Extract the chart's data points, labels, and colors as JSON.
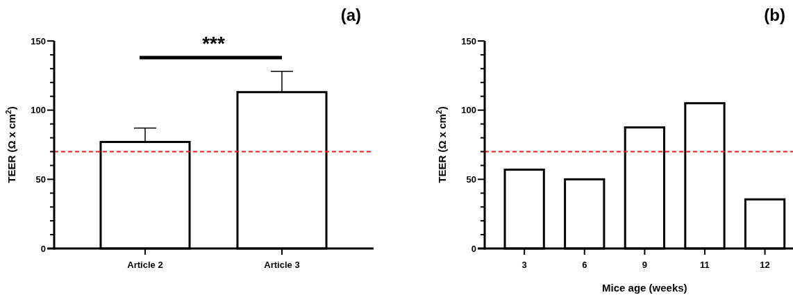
{
  "chart_data": [
    {
      "type": "bar",
      "title": "(a)",
      "ylabel": "TEER (Ω x cm$^{2}$)",
      "categories": [
        "Article 2",
        "Article 3"
      ],
      "values": [
        77,
        113
      ],
      "errors": [
        [
          77,
          87
        ],
        [
          113,
          128
        ]
      ],
      "color": "#ffffff",
      "ylim": [
        0,
        150
      ],
      "yticks": [
        0,
        {
          "value": 10,
          "label": null
        },
        {
          "value": 20,
          "label": null
        },
        {
          "value": 30,
          "label": null
        },
        {
          "value": 40,
          "label": null
        },
        50,
        {
          "value": 60,
          "label": null
        },
        {
          "value": 70,
          "label": null
        },
        {
          "value": 80,
          "label": null
        },
        {
          "value": 90,
          "label": null
        },
        100,
        {
          "value": 110,
          "label": null
        },
        {
          "value": 120,
          "label": null
        },
        {
          "value": 130,
          "label": null
        },
        {
          "value": 140,
          "label": null
        },
        150
      ],
      "ref_lines": [
        {
          "axis": "y",
          "value": 70,
          "color": "#ee1c1c",
          "line_style": "dashed"
        }
      ],
      "annotations": [
        "***"
      ],
      "grid": false
    },
    {
      "type": "bar",
      "title": "(b)",
      "ylabel": "TEER (Ω x cm$^{2}$)",
      "xlabel": "Mice age (weeks)",
      "categories": [
        "3",
        "6",
        "9",
        "11",
        "12"
      ],
      "values": [
        57,
        50,
        87.5,
        105,
        35.5
      ],
      "color": "#ffffff",
      "ylim": [
        0,
        150
      ],
      "yticks": [
        0,
        {
          "value": 10,
          "label": null
        },
        {
          "value": 20,
          "label": null
        },
        {
          "value": 30,
          "label": null
        },
        {
          "value": 40,
          "label": null
        },
        50,
        {
          "value": 60,
          "label": null
        },
        {
          "value": 70,
          "label": null
        },
        {
          "value": 80,
          "label": null
        },
        {
          "value": 90,
          "label": null
        },
        100,
        {
          "value": 110,
          "label": null
        },
        {
          "value": 120,
          "label": null
        },
        {
          "value": 130,
          "label": null
        },
        {
          "value": 140,
          "label": null
        },
        150
      ],
      "ref_lines": [
        {
          "axis": "y",
          "value": 70,
          "color": "#ee1c1c",
          "line_style": "dashed"
        }
      ],
      "grid": false
    }
  ]
}
